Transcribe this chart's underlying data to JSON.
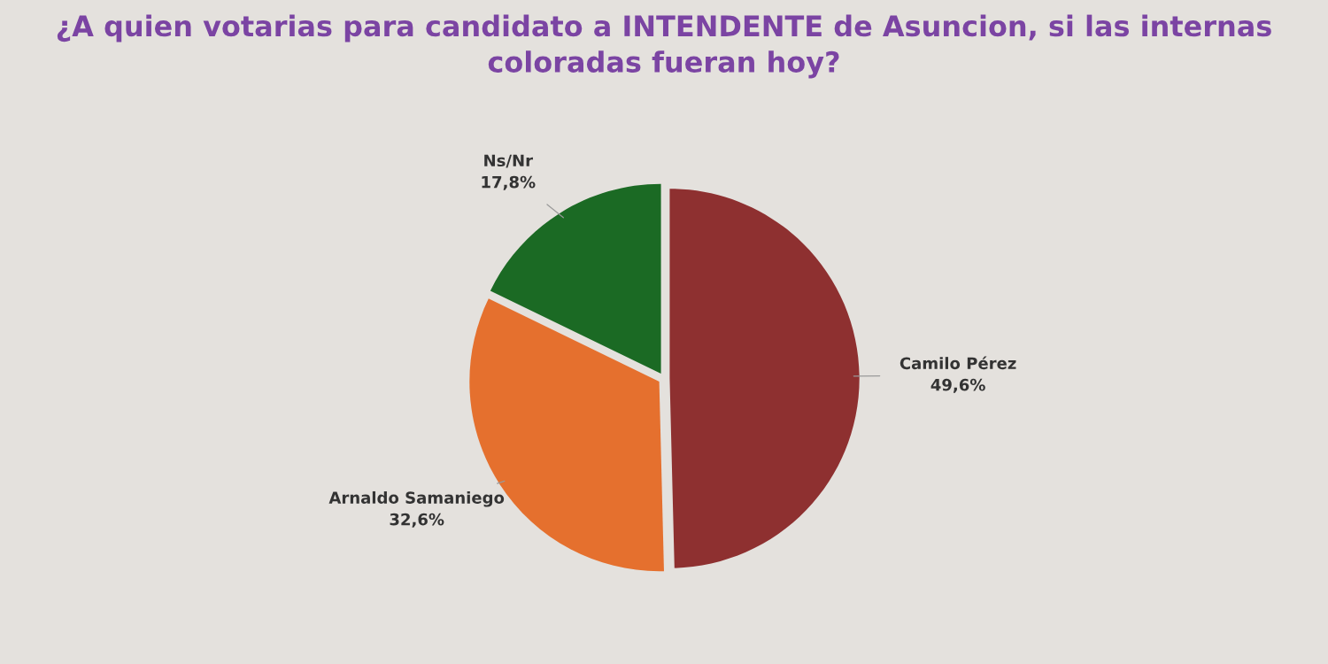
{
  "chart_data": {
    "type": "pie",
    "title": "¿A quien votarias para candidato a INTENDENTE de Asuncion, si las internas coloradas fueran hoy?",
    "categories": [
      "Camilo Pérez",
      "Arnaldo Samaniego",
      "Ns/Nr"
    ],
    "values": [
      49.6,
      32.6,
      17.8
    ],
    "value_labels": [
      "49,6%",
      "32,6%",
      "17,8%"
    ],
    "colors": [
      "#8e3030",
      "#e5702e",
      "#1b6a24"
    ]
  }
}
